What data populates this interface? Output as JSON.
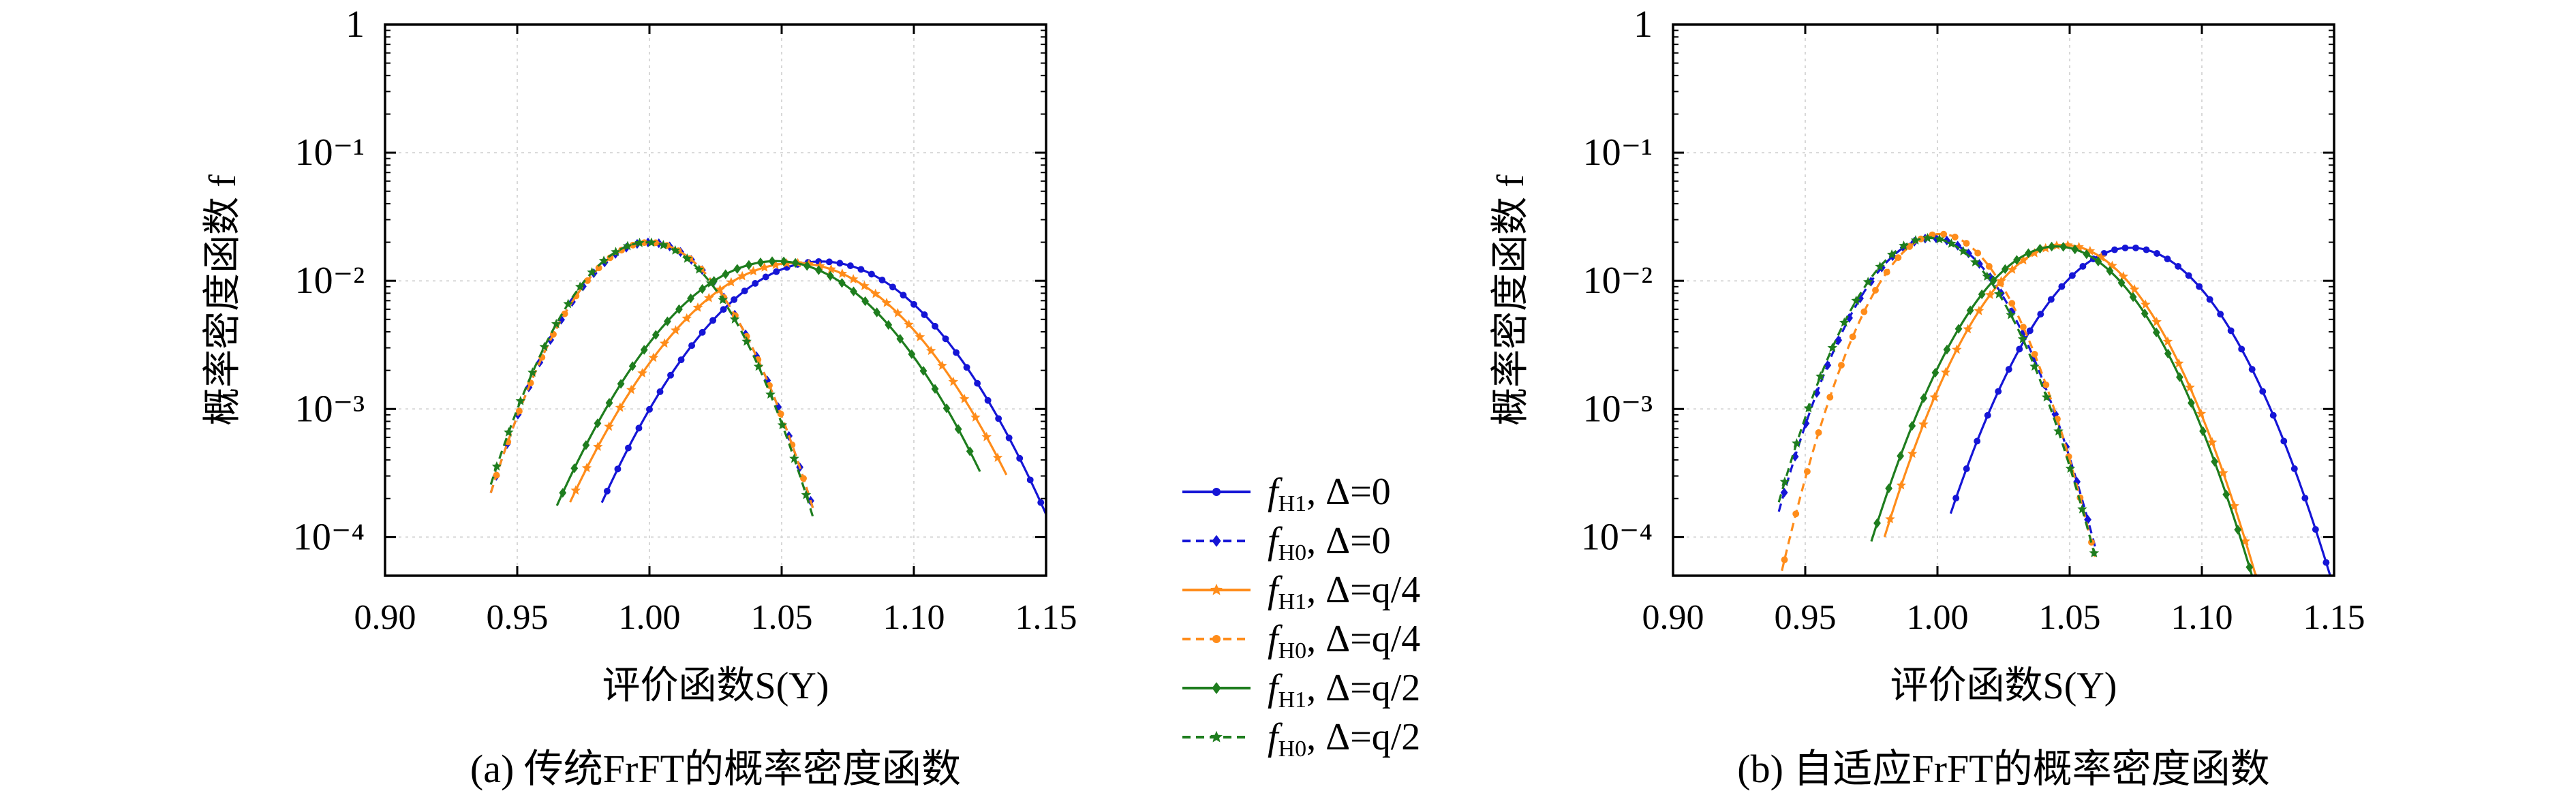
{
  "colors": {
    "blue": "#1515d6",
    "orange": "#ff8c1a",
    "green": "#1e7d1e"
  },
  "chart_data": [
    {
      "type": "line",
      "caption": "(a) 传统FrFT的概率密度函数",
      "xlabel": "评价函数S(Y)",
      "ylabel": "概率密度函数 f",
      "xlim": [
        0.9,
        1.15
      ],
      "ylim": [
        5e-05,
        1
      ],
      "yscale": "log",
      "x_ticks": [
        "0.90",
        "0.95",
        "1.00",
        "1.05",
        "1.10",
        "1.15"
      ],
      "y_ticks": [
        "10⁻⁴",
        "10⁻³",
        "10⁻²",
        "10⁻¹",
        "1"
      ],
      "grid": true,
      "series": [
        {
          "name": "fH1, Δ=0",
          "color": "blue",
          "style": "solid",
          "marker": "circle",
          "mean": 1.065,
          "sigma": 0.0282,
          "x_min": 0.982,
          "x_max": 1.15
        },
        {
          "name": "fH0, Δ=0",
          "color": "blue",
          "style": "dashed",
          "marker": "diamond",
          "mean": 1.0,
          "sigma": 0.02,
          "x_min": 0.94,
          "x_max": 1.062
        },
        {
          "name": "fH1, Δ=q/4",
          "color": "orange",
          "style": "solid",
          "marker": "star",
          "mean": 1.055,
          "sigma": 0.029,
          "x_min": 0.97,
          "x_max": 1.135
        },
        {
          "name": "fH0, Δ=q/4",
          "color": "orange",
          "style": "dashed",
          "marker": "circle",
          "mean": 1.0,
          "sigma": 0.02,
          "x_min": 0.94,
          "x_max": 1.062
        },
        {
          "name": "fH1, Δ=q/2",
          "color": "green",
          "style": "solid",
          "marker": "diamond",
          "mean": 1.048,
          "sigma": 0.028,
          "x_min": 0.965,
          "x_max": 1.125
        },
        {
          "name": "fH0, Δ=q/2",
          "color": "green",
          "style": "dashed",
          "marker": "star",
          "mean": 0.999,
          "sigma": 0.02,
          "x_min": 0.94,
          "x_max": 1.062
        }
      ]
    },
    {
      "type": "line",
      "caption": "(b) 自适应FrFT的概率密度函数",
      "xlabel": "评价函数S(Y)",
      "ylabel": "概率密度函数 f",
      "xlim": [
        0.9,
        1.15
      ],
      "ylim": [
        5e-05,
        1
      ],
      "yscale": "log",
      "x_ticks": [
        "0.90",
        "0.95",
        "1.00",
        "1.05",
        "1.10",
        "1.15"
      ],
      "y_ticks": [
        "10⁻⁴",
        "10⁻³",
        "10⁻²",
        "10⁻¹",
        "1"
      ],
      "grid": true,
      "series": [
        {
          "name": "fH1, Δ=0",
          "color": "blue",
          "style": "solid",
          "marker": "circle",
          "mean": 1.073,
          "sigma": 0.022,
          "x_min": 1.005,
          "x_max": 1.15
        },
        {
          "name": "fH0, Δ=0",
          "color": "blue",
          "style": "dashed",
          "marker": "diamond",
          "mean": 0.998,
          "sigma": 0.0185,
          "x_min": 0.94,
          "x_max": 1.06
        },
        {
          "name": "fH1, Δ=q/4",
          "color": "orange",
          "style": "solid",
          "marker": "star",
          "mean": 1.048,
          "sigma": 0.021,
          "x_min": 0.98,
          "x_max": 1.13
        },
        {
          "name": "fH0, Δ=q/4",
          "color": "orange",
          "style": "dashed",
          "marker": "circle",
          "mean": 1.001,
          "sigma": 0.0172,
          "x_min": 0.94,
          "x_max": 1.06
        },
        {
          "name": "fH1, Δ=q/2",
          "color": "green",
          "style": "solid",
          "marker": "diamond",
          "mean": 1.045,
          "sigma": 0.0215,
          "x_min": 0.975,
          "x_max": 1.125
        },
        {
          "name": "fH0, Δ=q/2",
          "color": "green",
          "style": "dashed",
          "marker": "star",
          "mean": 0.997,
          "sigma": 0.0185,
          "x_min": 0.94,
          "x_max": 1.06
        }
      ]
    }
  ],
  "legend": {
    "placement": "center",
    "items": [
      {
        "f": "f",
        "sub": "H1",
        "rest": ", Δ=0",
        "color": "blue",
        "style": "solid",
        "marker": "circle"
      },
      {
        "f": "f",
        "sub": "H0",
        "rest": ", Δ=0",
        "color": "blue",
        "style": "dashed",
        "marker": "diamond"
      },
      {
        "f": "f",
        "sub": "H1",
        "rest": ", Δ=q/4",
        "color": "orange",
        "style": "solid",
        "marker": "star"
      },
      {
        "f": "f",
        "sub": "H0",
        "rest": ", Δ=q/4",
        "color": "orange",
        "style": "dashed",
        "marker": "circle"
      },
      {
        "f": "f",
        "sub": "H1",
        "rest": ", Δ=q/2",
        "color": "green",
        "style": "solid",
        "marker": "diamond"
      },
      {
        "f": "f",
        "sub": "H0",
        "rest": ", Δ=q/2",
        "color": "green",
        "style": "dashed",
        "marker": "star"
      }
    ]
  }
}
